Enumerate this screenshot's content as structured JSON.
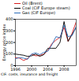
{
  "chart_data": {
    "type": "line",
    "y_label": "Energy price index",
    "caption": "CIF: costs, insurance and freight",
    "x": [
      1996,
      1997,
      1998,
      1999,
      2000,
      2001,
      2002,
      2003,
      2004,
      2005,
      2006,
      2007,
      2008,
      2009,
      2010,
      2011
    ],
    "series": [
      {
        "name": "Oil (Brent)",
        "color": "#d7191c",
        "values": [
          70,
          65,
          45,
          60,
          100,
          85,
          88,
          100,
          130,
          190,
          220,
          245,
          330,
          210,
          280,
          380
        ]
      },
      {
        "name": "Coal (CIF Europe steam)",
        "color": "#000000",
        "values": [
          100,
          95,
          90,
          80,
          85,
          100,
          80,
          95,
          150,
          150,
          150,
          200,
          380,
          210,
          270,
          330
        ]
      },
      {
        "name": "Gas (CIF Europe)",
        "color": "#2b6cb8",
        "values": [
          60,
          70,
          65,
          55,
          100,
          110,
          95,
          115,
          125,
          180,
          250,
          240,
          350,
          250,
          260,
          340
        ]
      }
    ],
    "xlim": [
      1996,
      2011
    ],
    "xticks": [
      1996,
      2000,
      2004,
      2008
    ],
    "ylim": [
      0,
      400
    ],
    "yticks": [
      0,
      100,
      200,
      300,
      400
    ],
    "legend": "top"
  }
}
